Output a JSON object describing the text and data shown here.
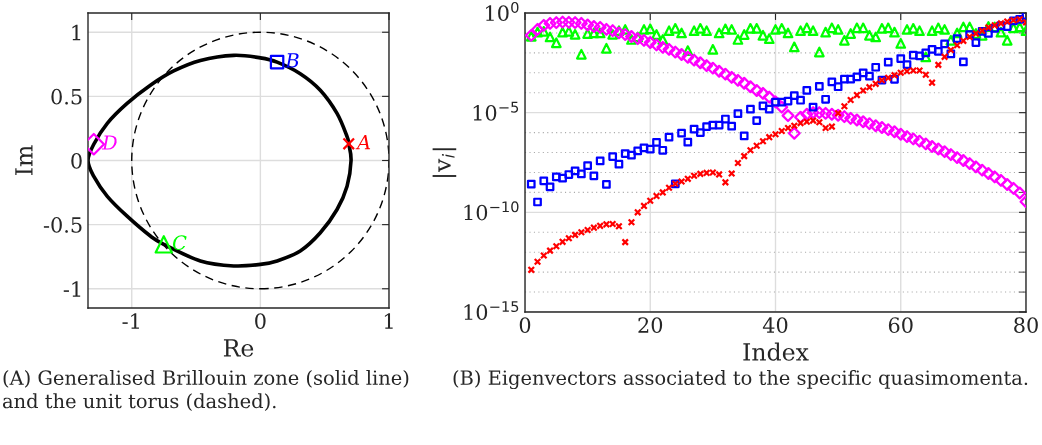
{
  "chart_data": [
    {
      "type": "scatter",
      "xlabel": "Re",
      "ylabel": "Im",
      "xlim": [
        -1.34,
        1.0
      ],
      "ylim": [
        -1.15,
        1.15
      ],
      "xticks": [
        -1,
        0,
        1
      ],
      "yticks": [
        -1,
        -0.5,
        0,
        0.5,
        1
      ],
      "grid": true,
      "annotations": [
        "(A) Generalised Brillouin zone (solid line) and the unit torus (dashed)."
      ],
      "series": [
        {
          "type": "scatter",
          "name": "A",
          "color": "#ff0000",
          "marker": "cross",
          "x": [
            0.687
          ],
          "values": [
            0.13
          ]
        },
        {
          "type": "scatter",
          "name": "B",
          "color": "#0000ff",
          "marker": "square",
          "x": [
            0.13
          ],
          "values": [
            0.767
          ]
        },
        {
          "type": "scatter",
          "name": "C",
          "color": "#00ff00",
          "marker": "triangle",
          "x": [
            -0.751
          ],
          "values": [
            -0.654
          ]
        },
        {
          "type": "scatter",
          "name": "D",
          "color": "#ff00ff",
          "marker": "diamond",
          "x": [
            -1.295
          ],
          "values": [
            0.127
          ]
        }
      ]
    },
    {
      "type": "scatter",
      "xlabel": "Index",
      "ylabel": "|v$_{i}$|",
      "xlim": [
        0,
        80
      ],
      "ylim": [
        1e-15,
        1
      ],
      "xticks": [
        0,
        20,
        40,
        60,
        80
      ],
      "yticks": [
        {
          "value": 1e-15,
          "label": "10$^{−15}$"
        },
        {
          "value": 1e-10,
          "label": "10$^{−10}$"
        },
        {
          "value": 1e-05,
          "label": "10$^{−5}$"
        },
        {
          "value": 1,
          "label": "10$^{0}$"
        }
      ],
      "log": "y",
      "grid": true,
      "annotations": [
        "(B) Eigenvectors associated to the specific quasimomenta."
      ],
      "x": [
        1,
        2,
        3,
        4,
        5,
        6,
        7,
        8,
        9,
        10,
        11,
        12,
        13,
        14,
        15,
        16,
        17,
        18,
        19,
        20,
        21,
        22,
        23,
        24,
        25,
        26,
        27,
        28,
        29,
        30,
        31,
        32,
        33,
        34,
        35,
        36,
        37,
        38,
        39,
        40,
        41,
        42,
        43,
        44,
        45,
        46,
        47,
        48,
        49,
        50,
        51,
        52,
        53,
        54,
        55,
        56,
        57,
        58,
        59,
        60,
        61,
        62,
        63,
        64,
        65,
        66,
        67,
        68,
        69,
        70,
        71,
        72,
        73,
        74,
        75,
        76,
        77,
        78,
        79,
        80
      ],
      "series": [
        {
          "color": "#00ff00",
          "marker": "triangle",
          "values": [
            0.068,
            0.11,
            0.12,
            0.063,
            0.032,
            0.11,
            0.12,
            0.085,
            0.0085,
            0.093,
            0.1,
            0.1,
            0.017,
            0.085,
            0.13,
            0.15,
            0.047,
            0.063,
            0.15,
            0.16,
            0.083,
            0.047,
            0.13,
            0.17,
            0.1,
            0.013,
            0.13,
            0.17,
            0.13,
            0.015,
            0.1,
            0.16,
            0.15,
            0.047,
            0.083,
            0.17,
            0.17,
            0.076,
            0.052,
            0.15,
            0.17,
            0.1,
            0.02,
            0.13,
            0.18,
            0.13,
            0.011,
            0.11,
            0.18,
            0.15,
            0.043,
            0.093,
            0.18,
            0.18,
            0.076,
            0.063,
            0.17,
            0.18,
            0.11,
            0.03,
            0.15,
            0.17,
            0.13,
            0.0063,
            0.13,
            0.18,
            0.15,
            0.043,
            0.1,
            0.2,
            0.2,
            0.093,
            0.076,
            0.21,
            0.2,
            0.11,
            0.043,
            0.18,
            0.2,
            0.13
          ]
        },
        {
          "color": "#ff00ff",
          "marker": "diamond",
          "values": [
            0.076,
            0.15,
            0.24,
            0.3,
            0.33,
            0.35,
            0.34,
            0.33,
            0.3,
            0.25,
            0.21,
            0.19,
            0.15,
            0.13,
            0.1,
            0.083,
            0.066,
            0.052,
            0.042,
            0.033,
            0.025,
            0.019,
            0.015,
            0.011,
            0.0083,
            0.006,
            0.0043,
            0.0032,
            0.0023,
            0.0017,
            0.0012,
            0.00085,
            0.00059,
            0.00042,
            0.0003,
            0.0002,
            0.00013,
            9.3e-05,
            6e-05,
            3.5e-05,
            1.9e-05,
            7.1e-06,
            9.3e-07,
            5.9e-06,
            8.3e-06,
            1e-05,
            1e-05,
            9.3e-06,
            8.3e-06,
            7.4e-06,
            6.3e-06,
            5.2e-06,
            4.3e-06,
            3.5e-06,
            2.8e-06,
            2.2e-06,
            1.8e-06,
            1.4e-06,
            1.1e-06,
            8.3e-07,
            6.3e-07,
            4.8e-07,
            3.7e-07,
            2.7e-07,
            2e-07,
            1.5e-07,
            1.1e-07,
            7.9e-08,
            5.6e-08,
            4e-08,
            2.8e-08,
            1.9e-08,
            1.3e-08,
            8.9e-09,
            6e-09,
            4e-09,
            2.5e-09,
            1.6e-09,
            9.3e-10,
            3.4e-10
          ]
        },
        {
          "color": "#0000ff",
          "marker": "square",
          "values": [
            2.6e-09,
            3.3e-10,
            3.8e-09,
            1.9e-09,
            6e-09,
            5.2e-09,
            7.9e-09,
            1.2e-08,
            8.5e-09,
            2.2e-08,
            6.8e-09,
            3.8e-08,
            2.5e-09,
            6.3e-08,
            2.6e-08,
            8.9e-08,
            7.4e-08,
            1.2e-07,
            1.7e-07,
            1.5e-07,
            3.2e-07,
            1.3e-07,
            5.9e-07,
            2.7e-09,
            9.3e-07,
            3.3e-07,
            1.5e-06,
            1e-06,
            2e-06,
            2.4e-06,
            2.4e-06,
            4.8e-06,
            2.1e-06,
            8.9e-06,
            6.8e-07,
            1.5e-05,
            4e-06,
            2.2e-05,
            1.5e-05,
            3.4e-05,
            3.4e-05,
            3.8e-05,
            7.1e-05,
            4.2e-05,
            0.00013,
            1.9e-05,
            0.00021,
            4.7e-05,
            0.00035,
            0.0002,
            0.00048,
            0.00048,
            0.00063,
            0.001,
            0.00068,
            0.0019,
            0.00043,
            0.0034,
            0.00047,
            0.0052,
            0.0026,
            0.0076,
            0.0071,
            0.01,
            0.015,
            0.012,
            0.028,
            0.0089,
            0.052,
            0.0035,
            0.083,
            0.033,
            0.12,
            0.095,
            0.17,
            0.23,
            0.21,
            0.4,
            0.48,
            0.76
          ]
        },
        {
          "color": "#ff0000",
          "marker": "cross",
          "values": [
            1.3e-13,
            3.3e-13,
            6.8e-13,
            1.2e-12,
            2e-12,
            3.3e-12,
            5e-12,
            7.4e-12,
            1e-11,
            1.3e-11,
            1.7e-11,
            2.1e-11,
            2.5e-11,
            2.6e-11,
            2e-11,
            3.2e-12,
            3.2e-11,
            1e-10,
            2.1e-10,
            3.8e-10,
            6.6e-10,
            1e-09,
            1.7e-09,
            2.7e-09,
            3.5e-09,
            4.8e-09,
            6.8e-09,
            8.5e-09,
            9.5e-09,
            1e-08,
            8e-09,
            3.2e-09,
            8.9e-09,
            3e-08,
            6.6e-08,
            1.3e-07,
            2.2e-07,
            3.7e-07,
            5.9e-07,
            8.3e-07,
            1.2e-06,
            1.7e-06,
            2.2e-06,
            3e-06,
            3.5e-06,
            4e-06,
            3.3e-06,
            1.7e-06,
            2e-06,
            9.3e-06,
            2.1e-05,
            4.3e-05,
            7.6e-05,
            0.00013,
            0.00019,
            0.00028,
            0.00042,
            0.00056,
            0.00076,
            0.001,
            0.0012,
            0.0013,
            0.0013,
            0.0008,
            0.00032,
            0.0025,
            0.0063,
            0.014,
            0.024,
            0.04,
            0.063,
            0.093,
            0.13,
            0.19,
            0.24,
            0.3,
            0.37,
            0.43,
            0.48,
            0.34
          ]
        }
      ]
    }
  ]
}
